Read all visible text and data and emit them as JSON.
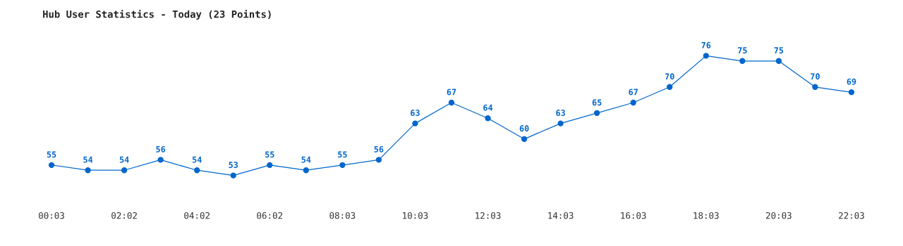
{
  "chart_data": {
    "type": "line",
    "title": "Hub User Statistics - Today (23 Points)",
    "categories": [
      "00:03",
      null,
      "02:02",
      null,
      "04:02",
      null,
      "06:02",
      null,
      "08:03",
      null,
      "10:03",
      null,
      "12:03",
      null,
      "14:03",
      null,
      "16:03",
      null,
      "18:03",
      null,
      "20:03",
      null,
      "22:03"
    ],
    "series": [
      {
        "color": "#0066cc",
        "values": [
          55,
          54,
          54,
          56,
          54,
          53,
          55,
          54,
          55,
          56,
          63,
          67,
          64,
          60,
          63,
          65,
          67,
          70,
          76,
          75,
          75,
          70,
          69
        ]
      }
    ],
    "tick_labels": "x",
    "data_labels": true,
    "marker": "circle",
    "line_style": "solid",
    "grid": false,
    "legend": false
  }
}
